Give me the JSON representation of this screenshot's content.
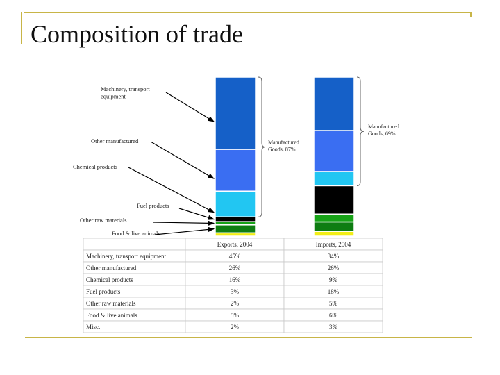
{
  "slide": {
    "title": "Composition of trade"
  },
  "chart_data": {
    "type": "bar",
    "stacked": true,
    "unit": "%",
    "categories": [
      "Exports, 2004",
      "Imports, 2004"
    ],
    "series": [
      {
        "name": "Machinery, transport equipment",
        "values": [
          45,
          34
        ],
        "color": "#1560c8",
        "label": "Machinery, transport equipment",
        "label_short": "Machinery, transport\nequipment"
      },
      {
        "name": "Other manufactured",
        "values": [
          26,
          26
        ],
        "color": "#3a6ef2",
        "label": "Other manufactured",
        "label_short": "Other manufactured"
      },
      {
        "name": "Chemical products",
        "values": [
          16,
          9
        ],
        "color": "#22c6f2",
        "label": "Chemical products",
        "label_short": "Chemical products"
      },
      {
        "name": "Fuel products",
        "values": [
          3,
          18
        ],
        "color": "#000000",
        "label": "Fuel products",
        "label_short": "Fuel products"
      },
      {
        "name": "Other raw materials",
        "values": [
          2,
          5
        ],
        "color": "#17a317",
        "label": "Other raw materials",
        "label_short": "Other raw materials"
      },
      {
        "name": "Food & live animals",
        "values": [
          5,
          6
        ],
        "color": "#0e7d12",
        "label": "Food & live animals",
        "label_short": "Food & live animals"
      },
      {
        "name": "Misc.",
        "values": [
          2,
          3
        ],
        "color": "#f2ee16",
        "label": "Misc.",
        "label_short": ""
      }
    ],
    "brace_labels": [
      "Manufactured\nGoods, 87%",
      "Manufactured\nGoods, 69%"
    ],
    "table": {
      "columns": [
        "",
        "Exports, 2004",
        "Imports, 2004"
      ],
      "rows": [
        [
          "Machinery, transport equipment",
          "45%",
          "34%"
        ],
        [
          "Other manufactured",
          "26%",
          "26%"
        ],
        [
          "Chemical products",
          "16%",
          "9%"
        ],
        [
          "Fuel products",
          "3%",
          "18%"
        ],
        [
          "Other raw materials",
          "2%",
          "5%"
        ],
        [
          "Food & live animals",
          "5%",
          "6%"
        ],
        [
          "Misc.",
          "2%",
          "3%"
        ]
      ]
    }
  }
}
